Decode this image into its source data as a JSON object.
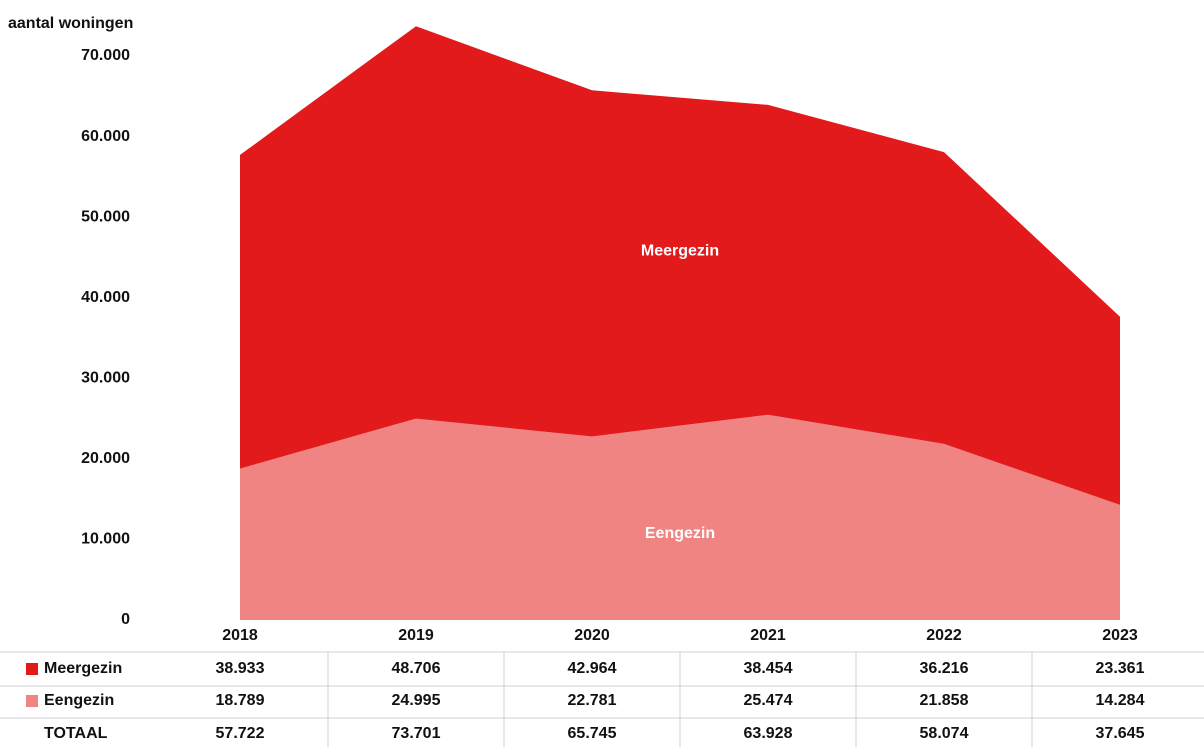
{
  "chart_data": {
    "type": "stacked_area",
    "y_axis_label": "aantal woningen",
    "categories": [
      "2018",
      "2019",
      "2020",
      "2021",
      "2022",
      "2023"
    ],
    "series": [
      {
        "name": "Eengezin",
        "color": "#f08482",
        "values": [
          18789,
          24995,
          22781,
          25474,
          21858,
          14284
        ],
        "value_labels": [
          "18.789",
          "24.995",
          "22.781",
          "25.474",
          "21.858",
          "14.284"
        ]
      },
      {
        "name": "Meergezin",
        "color": "#e31a1c",
        "values": [
          38933,
          48706,
          42964,
          38454,
          36216,
          23361
        ],
        "value_labels": [
          "38.933",
          "48.706",
          "42.964",
          "38.454",
          "36.216",
          "23.361"
        ]
      }
    ],
    "totals": {
      "name": "TOTAAL",
      "values": [
        57722,
        73701,
        65745,
        63928,
        58074,
        37645
      ],
      "value_labels": [
        "57.722",
        "73.701",
        "65.745",
        "63.928",
        "58.074",
        "37.645"
      ]
    },
    "ylim": [
      0,
      75000
    ],
    "yticks": [
      0,
      {
        "value": 10000,
        "label": "10.000"
      },
      {
        "value": 20000,
        "label": "20.000"
      },
      {
        "value": 30000,
        "label": "30.000"
      },
      {
        "value": 40000,
        "label": "40.000"
      },
      {
        "value": 50000,
        "label": "50.000"
      },
      {
        "value": 60000,
        "label": "60.000"
      },
      {
        "value": 70000,
        "label": "70.000"
      }
    ],
    "grid": false
  }
}
